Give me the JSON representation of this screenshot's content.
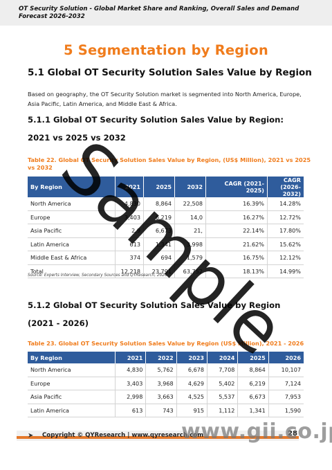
{
  "header": {
    "title": "OT Security Solution - Global Market Share and Ranking, Overall Sales and Demand Forecast 2026-2032"
  },
  "chapter": {
    "title": "5  Segmentation by Region"
  },
  "section": {
    "heading": "5.1  Global OT Security Solution Sales Value by Region",
    "paragraph": "Based on geography, the OT Security Solution market is segmented into North America, Europe, Asia Pacific, Latin America, and Middle East & Africa."
  },
  "subsection1": {
    "heading": "5.1.1  Global OT Security Solution Sales Value by Region: 2021 vs 2025 vs 2032",
    "caption": "Table 22.   Global OT Security Solution Sales Value by Region, (US$ Million), 2021 vs 2025 vs 2032",
    "columns": [
      "By Region",
      "2021",
      "2025",
      "2032",
      "CAGR (2021-2025)",
      "CAGR (2026-2032)"
    ],
    "rows": [
      [
        "North America",
        "4,830",
        "8,864",
        "22,508",
        "16.39%",
        "14.28%"
      ],
      [
        "Europe",
        "3,403",
        "6,219",
        "14,0",
        "16.27%",
        "12.72%"
      ],
      [
        "Asia Pacific",
        "2,9",
        "6,673",
        "21,",
        "22.14%",
        "17.80%"
      ],
      [
        "Latin America",
        "613",
        "1,341",
        "3,998",
        "21.62%",
        "15.62%"
      ],
      [
        "Middle East & Africa",
        "374",
        "694",
        "1,579",
        "16.75%",
        "12.12%"
      ],
      [
        "Total",
        "12,218",
        "23,791",
        "63,752",
        "18.13%",
        "14.99%"
      ]
    ],
    "source": "Source: Experts Interview, Secondary Sources and QYResearch, 2026"
  },
  "subsection2": {
    "heading": "5.1.2  Global OT Security Solution Sales Value by Region (2021 - 2026)",
    "caption": "Table 23.   Global OT Security Solution Sales Value by Region (US$ Million), 2021 - 2026",
    "columns": [
      "By Region",
      "2021",
      "2022",
      "2023",
      "2024",
      "2025",
      "2026"
    ],
    "rows": [
      [
        "North America",
        "4,830",
        "5,762",
        "6,678",
        "7,708",
        "8,864",
        "10,107"
      ],
      [
        "Europe",
        "3,403",
        "3,968",
        "4,629",
        "5,402",
        "6,219",
        "7,124"
      ],
      [
        "Asia Pacific",
        "2,998",
        "3,663",
        "4,525",
        "5,537",
        "6,673",
        "7,953"
      ],
      [
        "Latin America",
        "613",
        "743",
        "915",
        "1,112",
        "1,341",
        "1,590"
      ]
    ]
  },
  "footer": {
    "copyright": "Copyright © QYResearch | www.qyresearch.com",
    "page": "28"
  },
  "watermarks": {
    "sample": "Sample",
    "site": "www.gii.co.jp"
  },
  "colors": {
    "accent_orange": "#f07c1c",
    "table_header_blue": "#2f5c9c"
  }
}
